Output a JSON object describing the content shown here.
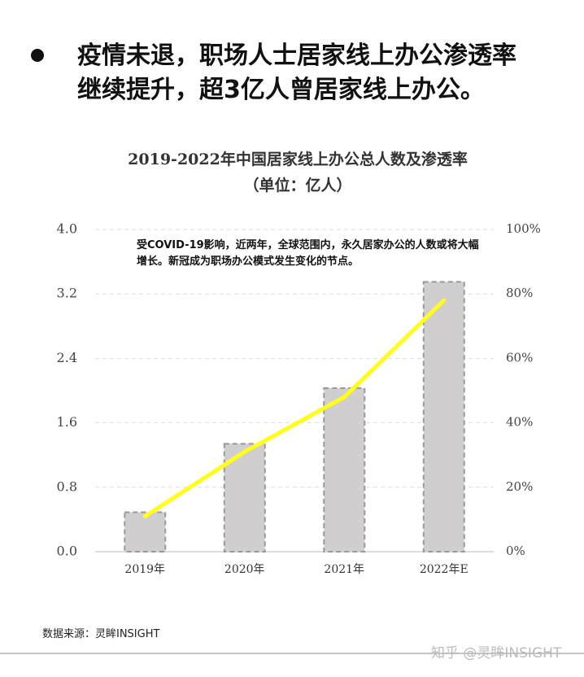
{
  "headline": "疫情未退，职场人士居家线上办公渗透率继续提升，超3亿人曾居家线上办公。",
  "chart_data": {
    "type": "bar_line",
    "title": "2019-2022年中国居家线上办公总人数及渗透率",
    "subtitle": "（单位：亿人）",
    "annotation": "受COVID-19影响，近两年，全球范围内，永久居家办公的人数或将大幅增长。新冠成为职场办公模式发生变化的节点。",
    "categories": [
      "2019年",
      "2020年",
      "2021年",
      "2022年E"
    ],
    "series": [
      {
        "name": "居家线上办公总人数",
        "type": "bar",
        "color": "#d0cece",
        "values": [
          0.49,
          1.34,
          2.03,
          3.35
        ]
      },
      {
        "name": "渗透率",
        "type": "line",
        "axis": "y2",
        "color": "#ffff1a",
        "values": [
          11,
          31,
          48,
          78
        ]
      }
    ],
    "ylim": [
      0,
      4
    ],
    "yticks": [
      {
        "value": 0,
        "label": "0.0"
      },
      0.8,
      1.6,
      2.4,
      3.2,
      {
        "value": 4,
        "label": "4.0"
      }
    ],
    "y2lim": [
      0,
      100
    ],
    "y2ticks": [
      {
        "value": 0,
        "label": "0%"
      },
      {
        "value": 20,
        "label": "20%"
      },
      {
        "value": 40,
        "label": "40%"
      },
      {
        "value": 60,
        "label": "60%"
      },
      {
        "value": 80,
        "label": "80%"
      },
      {
        "value": 100,
        "label": "100%"
      }
    ],
    "grid": true
  },
  "source": "数据来源：灵眸INSIGHT",
  "watermark": "知乎 @灵眸INSIGHT"
}
